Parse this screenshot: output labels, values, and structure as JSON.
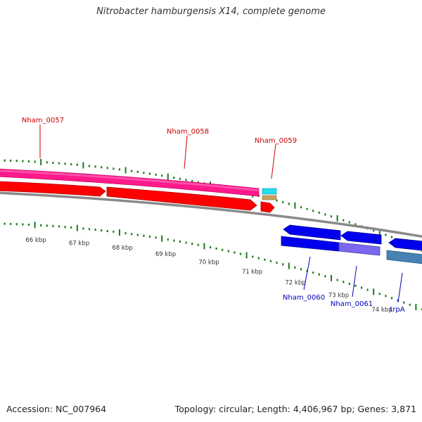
{
  "title": "Nitrobacter hamburgensis X14, complete genome",
  "footer": {
    "accession_label": "Accession:",
    "accession_value": "NC_007964",
    "topology_label": "Topology:",
    "topology_value": "circular",
    "length_label": "Length:",
    "length_value": "4,406,967 bp",
    "genes_label": "Genes:",
    "genes_value": "3,871"
  },
  "colors": {
    "tick": "#1a7a1a",
    "backbone": "#8a8a8a",
    "cds_forward": "#ff0000",
    "gene_forward": "#ff1493",
    "cds_reverse": "#0000ee",
    "gene_reverse": "#1a1aee",
    "label_forward": "#cc0000",
    "label_reverse": "#0000bb"
  },
  "scale_labels": [
    "66 kbp",
    "67 kbp",
    "68 kbp",
    "69 kbp",
    "70 kbp",
    "71 kbp",
    "72 kbp",
    "73 kbp",
    "74 kbp"
  ],
  "features": [
    {
      "id": "Nham_0057",
      "label": "Nham_0057",
      "strand": "forward"
    },
    {
      "id": "Nham_0058",
      "label": "Nham_0058",
      "strand": "forward"
    },
    {
      "id": "Nham_0059",
      "label": "Nham_0059",
      "strand": "forward"
    },
    {
      "id": "Nham_0060",
      "label": "Nham_0060",
      "strand": "reverse"
    },
    {
      "id": "Nham_0061",
      "label": "Nham_0061",
      "strand": "reverse"
    },
    {
      "id": "trpA",
      "label": "trpA",
      "strand": "reverse"
    }
  ]
}
